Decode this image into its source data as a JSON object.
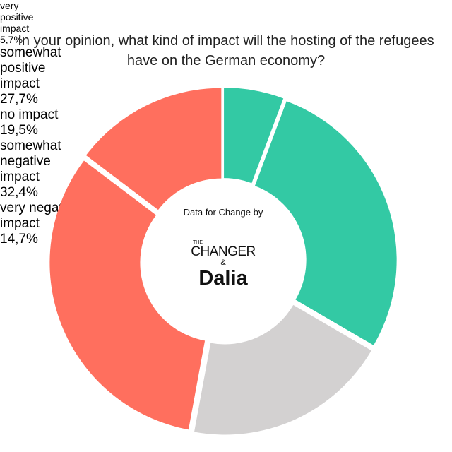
{
  "chart_data": {
    "type": "donut",
    "title": "In your opinion, what kind of impact will the hosting of the refugees have on the German economy?",
    "categories": [
      "very positive impact",
      "somewhat positive impact",
      "no impact",
      "somewhat negative impact",
      "very negative impact"
    ],
    "values": [
      5.7,
      27.7,
      19.5,
      32.4,
      14.7
    ],
    "value_labels": [
      "5,7%",
      "27,7%",
      "19,5%",
      "32,4%",
      "14,7%"
    ],
    "colors": [
      "#33c9a4",
      "#33c9a4",
      "#d3d1d1",
      "#ff6f5e",
      "#ff6f5e"
    ],
    "center": {
      "caption": "Data for Change by",
      "the": "THE",
      "changer": "CHANGER",
      "amp": "&",
      "dalia": "Dalia"
    }
  }
}
